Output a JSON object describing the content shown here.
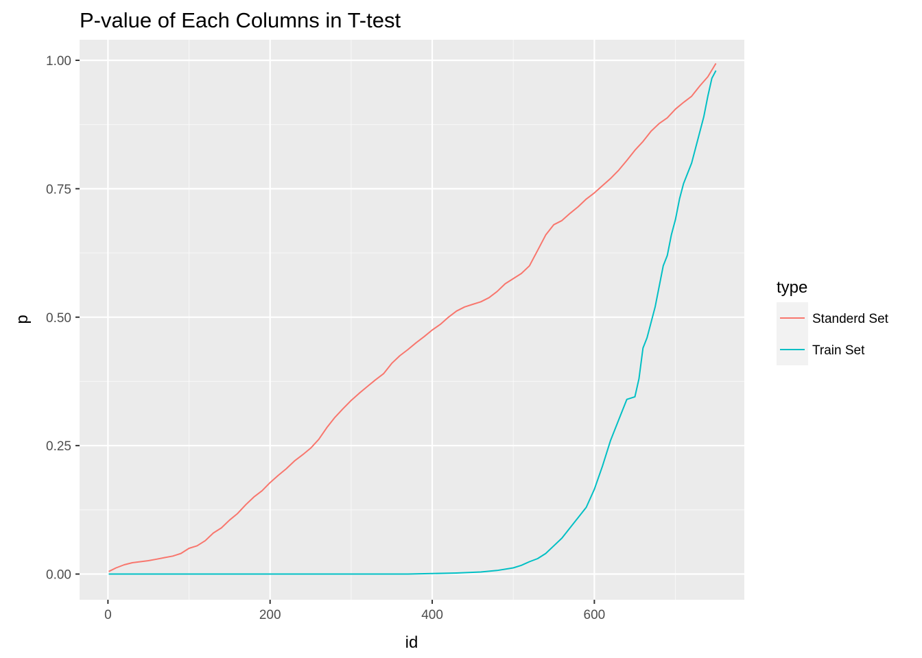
{
  "chart_data": {
    "type": "line",
    "title": "P-value of Each Columns in T-test",
    "xlabel": "id",
    "ylabel": "p",
    "xlim": [
      -35,
      785
    ],
    "ylim": [
      -0.05,
      1.04
    ],
    "x_ticks": [
      0,
      200,
      400,
      600
    ],
    "x_tick_labels": [
      "0",
      "200",
      "400",
      "600"
    ],
    "y_ticks": [
      0,
      0.25,
      0.5,
      0.75,
      1.0
    ],
    "y_tick_labels": [
      "0.00",
      "0.25",
      "0.50",
      "0.75",
      "1.00"
    ],
    "grid": true,
    "legend": {
      "title": "type",
      "position": "right"
    },
    "series": [
      {
        "name": "Standerd Set",
        "color": "#F8766D",
        "points": [
          [
            1,
            0.005
          ],
          [
            10,
            0.012
          ],
          [
            20,
            0.018
          ],
          [
            30,
            0.022
          ],
          [
            40,
            0.024
          ],
          [
            50,
            0.026
          ],
          [
            60,
            0.029
          ],
          [
            70,
            0.032
          ],
          [
            80,
            0.035
          ],
          [
            90,
            0.04
          ],
          [
            100,
            0.05
          ],
          [
            110,
            0.055
          ],
          [
            120,
            0.065
          ],
          [
            130,
            0.08
          ],
          [
            140,
            0.09
          ],
          [
            150,
            0.105
          ],
          [
            160,
            0.118
          ],
          [
            170,
            0.135
          ],
          [
            180,
            0.15
          ],
          [
            190,
            0.162
          ],
          [
            200,
            0.178
          ],
          [
            210,
            0.192
          ],
          [
            220,
            0.205
          ],
          [
            230,
            0.22
          ],
          [
            240,
            0.232
          ],
          [
            250,
            0.245
          ],
          [
            260,
            0.262
          ],
          [
            270,
            0.285
          ],
          [
            280,
            0.305
          ],
          [
            290,
            0.322
          ],
          [
            300,
            0.338
          ],
          [
            310,
            0.352
          ],
          [
            320,
            0.365
          ],
          [
            330,
            0.378
          ],
          [
            340,
            0.39
          ],
          [
            350,
            0.41
          ],
          [
            360,
            0.425
          ],
          [
            370,
            0.437
          ],
          [
            380,
            0.45
          ],
          [
            390,
            0.462
          ],
          [
            400,
            0.475
          ],
          [
            410,
            0.486
          ],
          [
            420,
            0.5
          ],
          [
            430,
            0.512
          ],
          [
            440,
            0.52
          ],
          [
            450,
            0.525
          ],
          [
            460,
            0.53
          ],
          [
            470,
            0.538
          ],
          [
            480,
            0.55
          ],
          [
            490,
            0.565
          ],
          [
            500,
            0.575
          ],
          [
            510,
            0.585
          ],
          [
            520,
            0.6
          ],
          [
            530,
            0.63
          ],
          [
            540,
            0.66
          ],
          [
            550,
            0.68
          ],
          [
            560,
            0.688
          ],
          [
            570,
            0.702
          ],
          [
            580,
            0.715
          ],
          [
            590,
            0.73
          ],
          [
            600,
            0.742
          ],
          [
            610,
            0.756
          ],
          [
            620,
            0.77
          ],
          [
            630,
            0.786
          ],
          [
            640,
            0.805
          ],
          [
            650,
            0.825
          ],
          [
            660,
            0.842
          ],
          [
            670,
            0.862
          ],
          [
            680,
            0.877
          ],
          [
            690,
            0.888
          ],
          [
            700,
            0.905
          ],
          [
            710,
            0.918
          ],
          [
            720,
            0.93
          ],
          [
            730,
            0.95
          ],
          [
            740,
            0.968
          ],
          [
            750,
            0.994
          ]
        ]
      },
      {
        "name": "Train Set",
        "color": "#00BFC4",
        "points": [
          [
            1,
            0.0
          ],
          [
            100,
            0.0
          ],
          [
            200,
            0.0
          ],
          [
            300,
            0.0
          ],
          [
            370,
            0.0
          ],
          [
            400,
            0.001
          ],
          [
            430,
            0.002
          ],
          [
            460,
            0.004
          ],
          [
            480,
            0.007
          ],
          [
            500,
            0.012
          ],
          [
            510,
            0.017
          ],
          [
            520,
            0.024
          ],
          [
            530,
            0.03
          ],
          [
            540,
            0.04
          ],
          [
            550,
            0.055
          ],
          [
            560,
            0.07
          ],
          [
            570,
            0.09
          ],
          [
            580,
            0.11
          ],
          [
            590,
            0.13
          ],
          [
            600,
            0.165
          ],
          [
            610,
            0.21
          ],
          [
            620,
            0.26
          ],
          [
            630,
            0.3
          ],
          [
            640,
            0.34
          ],
          [
            650,
            0.345
          ],
          [
            655,
            0.38
          ],
          [
            660,
            0.44
          ],
          [
            665,
            0.46
          ],
          [
            670,
            0.49
          ],
          [
            675,
            0.52
          ],
          [
            680,
            0.56
          ],
          [
            685,
            0.6
          ],
          [
            690,
            0.62
          ],
          [
            695,
            0.66
          ],
          [
            700,
            0.69
          ],
          [
            705,
            0.73
          ],
          [
            710,
            0.76
          ],
          [
            715,
            0.78
          ],
          [
            720,
            0.8
          ],
          [
            725,
            0.83
          ],
          [
            730,
            0.86
          ],
          [
            735,
            0.89
          ],
          [
            740,
            0.93
          ],
          [
            745,
            0.965
          ],
          [
            750,
            0.98
          ]
        ]
      }
    ]
  },
  "colors": {
    "panel_background": "#EBEBEB",
    "grid_major": "#FFFFFF",
    "legend_key_background": "#F2F2F2"
  }
}
